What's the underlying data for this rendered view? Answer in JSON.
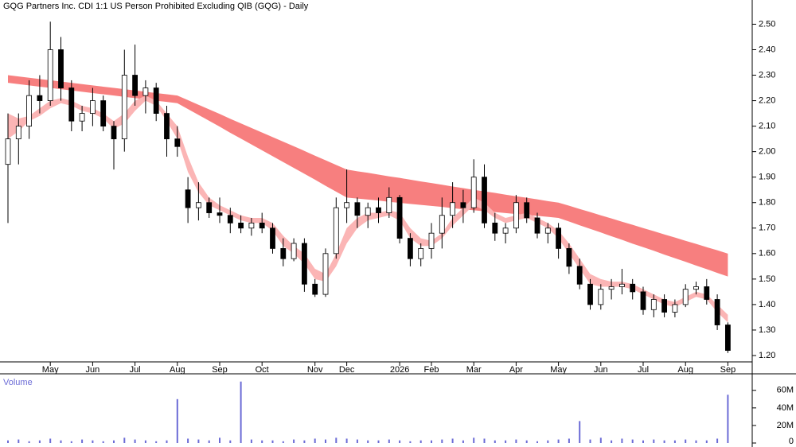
{
  "chart_data": [
    {
      "type": "candlestick",
      "title": "GQG Partners Inc. CDI 1:1 US Person Prohibited Excluding QIB (GQG) - Daily",
      "categories": [
        null,
        null,
        null,
        null,
        "May",
        null,
        null,
        null,
        "Jun",
        null,
        null,
        null,
        "Jul",
        null,
        null,
        null,
        "Aug",
        null,
        null,
        null,
        "Sep",
        null,
        null,
        null,
        "Oct",
        null,
        null,
        null,
        null,
        "Nov",
        null,
        null,
        "Dec",
        null,
        null,
        null,
        null,
        "2026",
        null,
        null,
        "Feb",
        null,
        null,
        null,
        "Mar",
        null,
        null,
        null,
        "Apr",
        null,
        null,
        null,
        "May",
        null,
        null,
        null,
        "Jun",
        null,
        null,
        null,
        "Jul",
        null,
        null,
        null,
        "Aug",
        null,
        null,
        null,
        "Sep"
      ],
      "open": [
        1.95,
        2.05,
        2.1,
        2.22,
        2.2,
        2.4,
        2.25,
        2.12,
        2.15,
        2.2,
        2.1,
        2.05,
        2.3,
        2.22,
        2.25,
        2.15,
        2.05,
        1.85,
        1.78,
        1.8,
        1.76,
        1.75,
        1.72,
        1.7,
        1.72,
        1.7,
        1.62,
        1.58,
        1.64,
        1.48,
        1.44,
        1.6,
        1.78,
        1.8,
        1.75,
        1.78,
        1.76,
        1.82,
        1.66,
        1.58,
        1.62,
        1.68,
        1.75,
        1.8,
        1.78,
        1.9,
        1.72,
        1.68,
        1.7,
        1.8,
        1.74,
        1.68,
        1.7,
        1.62,
        1.55,
        1.48,
        1.4,
        1.46,
        1.47,
        1.48,
        1.45,
        1.38,
        1.42,
        1.37,
        1.4,
        1.46,
        1.47,
        1.42,
        1.32
      ],
      "high": [
        2.15,
        2.15,
        2.28,
        2.3,
        2.51,
        2.45,
        2.28,
        2.18,
        2.25,
        2.22,
        2.12,
        2.4,
        2.42,
        2.28,
        2.27,
        2.18,
        2.1,
        1.9,
        1.88,
        1.82,
        1.82,
        1.78,
        1.75,
        1.74,
        1.76,
        1.72,
        1.66,
        1.66,
        1.66,
        1.5,
        1.62,
        1.82,
        1.93,
        1.82,
        1.8,
        1.82,
        1.86,
        1.83,
        1.68,
        1.64,
        1.72,
        1.82,
        1.88,
        1.85,
        1.97,
        1.95,
        1.76,
        1.72,
        1.83,
        1.82,
        1.76,
        1.72,
        1.72,
        1.64,
        1.58,
        1.5,
        1.48,
        1.5,
        1.54,
        1.5,
        1.47,
        1.44,
        1.44,
        1.42,
        1.48,
        1.49,
        1.5,
        1.44,
        1.33
      ],
      "low": [
        1.72,
        1.95,
        2.05,
        2.15,
        2.18,
        2.2,
        2.08,
        2.08,
        2.1,
        2.08,
        1.93,
        2.0,
        2.18,
        2.15,
        2.12,
        1.98,
        1.98,
        1.72,
        1.73,
        1.74,
        1.72,
        1.68,
        1.68,
        1.67,
        1.68,
        1.6,
        1.55,
        1.57,
        1.45,
        1.43,
        1.43,
        1.58,
        1.72,
        1.7,
        1.7,
        1.72,
        1.74,
        1.64,
        1.55,
        1.55,
        1.58,
        1.62,
        1.7,
        1.72,
        1.76,
        1.7,
        1.65,
        1.64,
        1.68,
        1.72,
        1.66,
        1.64,
        1.58,
        1.52,
        1.46,
        1.38,
        1.38,
        1.42,
        1.44,
        1.42,
        1.36,
        1.35,
        1.35,
        1.35,
        1.39,
        1.44,
        1.4,
        1.3,
        1.21
      ],
      "close": [
        2.05,
        2.1,
        2.22,
        2.2,
        2.4,
        2.25,
        2.12,
        2.15,
        2.2,
        2.1,
        2.05,
        2.3,
        2.22,
        2.25,
        2.15,
        2.05,
        2.02,
        1.78,
        1.8,
        1.76,
        1.75,
        1.72,
        1.7,
        1.72,
        1.7,
        1.62,
        1.58,
        1.64,
        1.48,
        1.44,
        1.6,
        1.78,
        1.8,
        1.75,
        1.78,
        1.76,
        1.82,
        1.66,
        1.58,
        1.62,
        1.68,
        1.75,
        1.8,
        1.78,
        1.9,
        1.72,
        1.68,
        1.7,
        1.8,
        1.74,
        1.68,
        1.7,
        1.62,
        1.55,
        1.48,
        1.4,
        1.46,
        1.47,
        1.48,
        1.45,
        1.38,
        1.42,
        1.37,
        1.4,
        1.46,
        1.47,
        1.42,
        1.32,
        1.22
      ],
      "ribbons": [
        {
          "color": "#f77f7f",
          "upper": [
            2.3,
            2.295,
            2.29,
            2.285,
            2.28,
            2.275,
            2.27,
            2.265,
            2.26,
            2.255,
            2.25,
            2.245,
            2.24,
            2.235,
            2.23,
            2.225,
            2.22,
            2.202,
            2.184,
            2.166,
            2.148,
            2.129,
            2.111,
            2.093,
            2.075,
            2.057,
            2.039,
            2.021,
            2.003,
            1.984,
            1.966,
            1.948,
            1.93,
            1.923,
            1.917,
            1.91,
            1.903,
            1.897,
            1.89,
            1.883,
            1.877,
            1.87,
            1.863,
            1.857,
            1.85,
            1.844,
            1.838,
            1.831,
            1.825,
            1.819,
            1.813,
            1.806,
            1.8,
            1.788,
            1.775,
            1.763,
            1.75,
            1.738,
            1.725,
            1.713,
            1.7,
            1.688,
            1.675,
            1.663,
            1.65,
            1.638,
            1.625,
            1.613,
            1.6
          ],
          "lower": [
            2.27,
            2.265,
            2.26,
            2.255,
            2.25,
            2.245,
            2.24,
            2.235,
            2.23,
            2.225,
            2.22,
            2.215,
            2.21,
            2.205,
            2.2,
            2.195,
            2.19,
            2.167,
            2.144,
            2.121,
            2.098,
            2.074,
            2.051,
            2.028,
            2.005,
            1.982,
            1.959,
            1.936,
            1.913,
            1.89,
            1.866,
            1.843,
            1.82,
            1.816,
            1.812,
            1.808,
            1.803,
            1.799,
            1.795,
            1.791,
            1.787,
            1.783,
            1.778,
            1.774,
            1.77,
            1.766,
            1.763,
            1.759,
            1.755,
            1.751,
            1.748,
            1.744,
            1.74,
            1.726,
            1.711,
            1.697,
            1.683,
            1.668,
            1.654,
            1.639,
            1.625,
            1.611,
            1.596,
            1.582,
            1.568,
            1.553,
            1.539,
            1.524,
            1.51
          ]
        },
        {
          "color": "#fbb5b5",
          "upper": [
            2.15,
            2.13,
            2.14,
            2.17,
            2.2,
            2.21,
            2.2,
            2.18,
            2.17,
            2.15,
            2.12,
            2.15,
            2.2,
            2.22,
            2.2,
            2.15,
            2.1,
            1.98,
            1.88,
            1.82,
            1.79,
            1.77,
            1.75,
            1.74,
            1.74,
            1.72,
            1.67,
            1.63,
            1.6,
            1.54,
            1.52,
            1.6,
            1.7,
            1.74,
            1.76,
            1.76,
            1.77,
            1.76,
            1.7,
            1.66,
            1.65,
            1.68,
            1.74,
            1.78,
            1.82,
            1.8,
            1.76,
            1.74,
            1.75,
            1.76,
            1.74,
            1.72,
            1.69,
            1.64,
            1.58,
            1.52,
            1.5,
            1.49,
            1.49,
            1.48,
            1.46,
            1.44,
            1.42,
            1.41,
            1.43,
            1.45,
            1.44,
            1.4,
            1.36
          ],
          "lower": [
            2.05,
            2.08,
            2.12,
            2.14,
            2.17,
            2.19,
            2.18,
            2.16,
            2.15,
            2.13,
            2.09,
            2.11,
            2.16,
            2.2,
            2.18,
            2.12,
            2.05,
            1.92,
            1.84,
            1.79,
            1.77,
            1.75,
            1.73,
            1.72,
            1.72,
            1.69,
            1.63,
            1.6,
            1.56,
            1.5,
            1.49,
            1.55,
            1.64,
            1.7,
            1.73,
            1.74,
            1.75,
            1.73,
            1.66,
            1.63,
            1.63,
            1.66,
            1.71,
            1.75,
            1.79,
            1.77,
            1.74,
            1.72,
            1.73,
            1.74,
            1.72,
            1.7,
            1.66,
            1.6,
            1.54,
            1.48,
            1.47,
            1.47,
            1.47,
            1.46,
            1.44,
            1.42,
            1.4,
            1.39,
            1.41,
            1.43,
            1.42,
            1.37,
            1.33
          ]
        }
      ],
      "ylim": [
        1.175,
        2.595
      ],
      "yticks": [
        {
          "value": 1.2,
          "label": "1.20"
        },
        {
          "value": 1.3,
          "label": "1.30"
        },
        {
          "value": 1.4,
          "label": "1.40"
        },
        {
          "value": 1.5,
          "label": "1.50"
        },
        {
          "value": 1.6,
          "label": "1.60"
        },
        {
          "value": 1.7,
          "label": "1.70"
        },
        {
          "value": 1.8,
          "label": "1.80"
        },
        {
          "value": 1.9,
          "label": "1.90"
        },
        {
          "value": 2.0,
          "label": "2.00"
        },
        {
          "value": 2.1,
          "label": "2.10"
        },
        {
          "value": 2.2,
          "label": "2.20"
        },
        {
          "value": 2.3,
          "label": "2.30"
        },
        {
          "value": 2.4,
          "label": "2.40"
        },
        {
          "value": 2.5,
          "label": "2.50"
        }
      ]
    },
    {
      "type": "bar",
      "title": "Volume",
      "color": "#6b6bd6",
      "values": [
        3,
        4,
        2,
        3,
        5,
        3,
        2,
        4,
        3,
        2,
        3,
        6,
        4,
        3,
        2,
        3,
        50,
        5,
        4,
        3,
        6,
        3,
        70,
        4,
        3,
        3,
        2,
        4,
        3,
        5,
        4,
        6,
        5,
        4,
        3,
        3,
        4,
        3,
        2,
        3,
        3,
        4,
        5,
        3,
        6,
        5,
        3,
        3,
        4,
        3,
        2,
        3,
        4,
        5,
        25,
        4,
        6,
        3,
        5,
        4,
        3,
        4,
        3,
        3,
        4,
        3,
        3,
        5,
        55
      ],
      "ylim": [
        0,
        77
      ],
      "yticks": [
        0,
        {
          "value": 20,
          "label": "20M"
        },
        {
          "value": 40,
          "label": "40M"
        },
        {
          "value": 60,
          "label": "60M"
        }
      ]
    }
  ]
}
